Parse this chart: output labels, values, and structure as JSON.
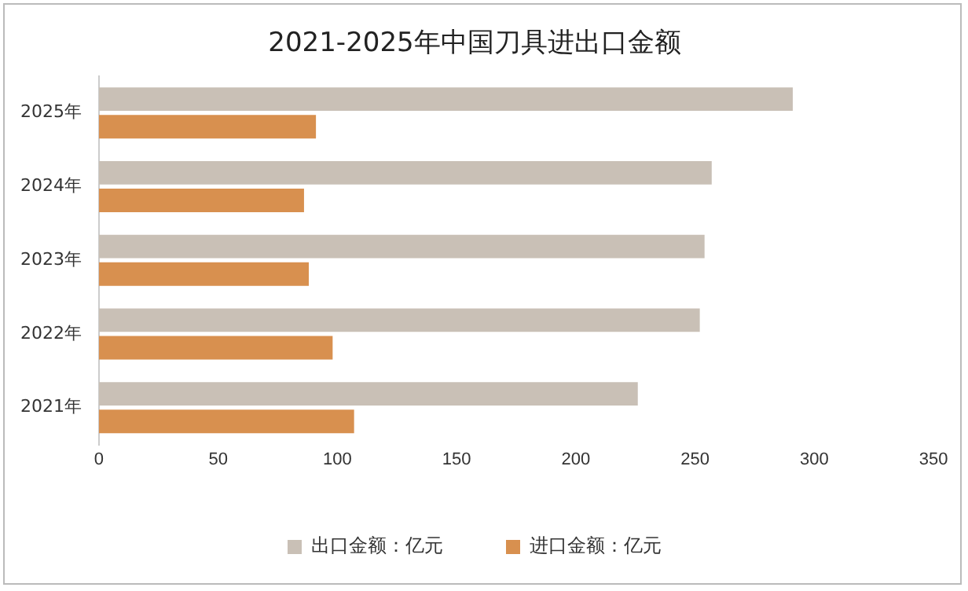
{
  "chart_data": {
    "type": "bar",
    "orientation": "horizontal",
    "title": "2021-2025年中国刀具进出口金额",
    "categories": [
      "2025年",
      "2024年",
      "2023年",
      "2022年",
      "2021年"
    ],
    "series": [
      {
        "name": "出口金额：亿元",
        "color": "#c9c0b6",
        "values": [
          291,
          257,
          254,
          252,
          226
        ]
      },
      {
        "name": "进口金额：亿元",
        "color": "#d8904f",
        "values": [
          91,
          86,
          88,
          98,
          107
        ]
      }
    ],
    "xlim": [
      0,
      350
    ],
    "xticks": [
      0,
      50,
      100,
      150,
      200,
      250,
      300,
      350
    ],
    "grid": false,
    "legend": "bottom"
  }
}
